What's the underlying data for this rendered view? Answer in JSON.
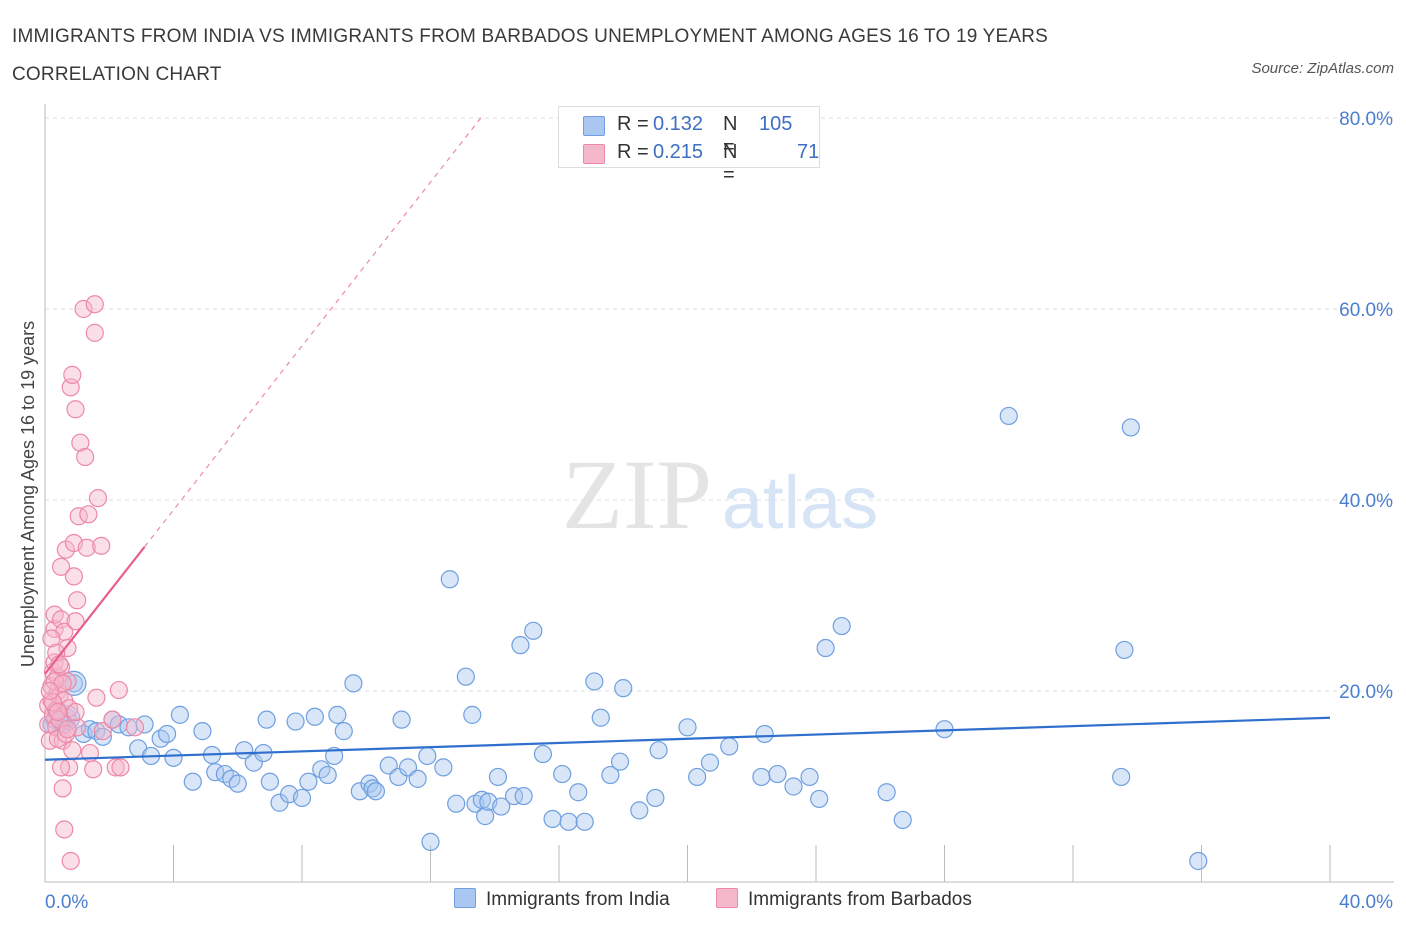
{
  "title": "IMMIGRANTS FROM INDIA VS IMMIGRANTS FROM BARBADOS UNEMPLOYMENT AMONG AGES 16 TO 19 YEARS CORRELATION CHART",
  "source": "Source: ZipAtlas.com",
  "watermark": {
    "zip": "ZIP",
    "atlas": "atlas"
  },
  "legend": {
    "india": {
      "r_label": "R =",
      "r_value": "0.132",
      "n_label": "N =",
      "n_value": "105"
    },
    "barbados": {
      "r_label": "R =",
      "r_value": "0.215",
      "n_label": "N =",
      "n_value": "71"
    }
  },
  "bottom_legend": {
    "india": "Immigrants from India",
    "barbados": "Immigrants from Barbados"
  },
  "colors": {
    "india_fill": "#a9c7f0",
    "india_stroke": "#6f9fe0",
    "india_line": "#2f6fce",
    "barbados_fill": "#f5b8cb",
    "barbados_stroke": "#ee88a8",
    "barbados_line": "#e8608a",
    "tick_text": "#4a7fcf",
    "grid": "#dddddd"
  },
  "chart_data": {
    "type": "scatter",
    "title": "IMMIGRANTS FROM INDIA VS IMMIGRANTS FROM BARBADOS UNEMPLOYMENT AMONG AGES 16 TO 19 YEARS CORRELATION CHART",
    "xlabel": "",
    "ylabel": "Unemployment Among Ages 16 to 19 years",
    "xlim": [
      0,
      40
    ],
    "ylim": [
      0,
      80
    ],
    "x_tick_labels": [
      "0.0%",
      "40.0%"
    ],
    "y_ticks": [
      20,
      40,
      60,
      80
    ],
    "y_tick_labels": [
      "20.0%",
      "40.0%",
      "60.0%",
      "80.0%"
    ],
    "grid": "horizontal dashed",
    "legend_position": "top-center",
    "series": [
      {
        "name": "Immigrants from India",
        "trend": {
          "x": [
            0,
            40
          ],
          "y": [
            12.8,
            17.2
          ]
        },
        "points": [
          [
            0.2,
            16.5
          ],
          [
            0.3,
            17
          ],
          [
            0.4,
            18
          ],
          [
            0.5,
            16.8
          ],
          [
            0.6,
            16.5
          ],
          [
            0.7,
            17.2
          ],
          [
            0.9,
            20.8
          ],
          [
            1.2,
            15.5
          ],
          [
            1.4,
            16
          ],
          [
            1.6,
            15.8
          ],
          [
            1.8,
            15.2
          ],
          [
            2.1,
            17
          ],
          [
            2.3,
            16.5
          ],
          [
            2.6,
            16.2
          ],
          [
            2.9,
            14
          ],
          [
            3.1,
            16.5
          ],
          [
            3.3,
            13.2
          ],
          [
            3.6,
            15
          ],
          [
            3.8,
            15.5
          ],
          [
            4.0,
            13
          ],
          [
            4.2,
            17.5
          ],
          [
            4.6,
            10.5
          ],
          [
            4.9,
            15.8
          ],
          [
            5.2,
            13.3
          ],
          [
            5.3,
            11.5
          ],
          [
            5.6,
            11.3
          ],
          [
            5.8,
            10.8
          ],
          [
            6.0,
            10.3
          ],
          [
            6.2,
            13.8
          ],
          [
            6.5,
            12.5
          ],
          [
            6.8,
            13.5
          ],
          [
            6.9,
            17
          ],
          [
            7.0,
            10.5
          ],
          [
            7.3,
            8.3
          ],
          [
            7.6,
            9.2
          ],
          [
            7.8,
            16.8
          ],
          [
            8.0,
            8.8
          ],
          [
            8.2,
            10.5
          ],
          [
            8.4,
            17.3
          ],
          [
            8.6,
            11.8
          ],
          [
            8.8,
            11.2
          ],
          [
            9.0,
            13.2
          ],
          [
            9.1,
            17.5
          ],
          [
            9.3,
            15.8
          ],
          [
            9.6,
            20.8
          ],
          [
            9.8,
            9.5
          ],
          [
            10.1,
            10.3
          ],
          [
            10.2,
            9.8
          ],
          [
            10.3,
            9.5
          ],
          [
            10.7,
            12.2
          ],
          [
            11.0,
            11
          ],
          [
            11.1,
            17
          ],
          [
            11.3,
            12
          ],
          [
            11.6,
            10.8
          ],
          [
            11.9,
            13.2
          ],
          [
            12.0,
            4.2
          ],
          [
            12.4,
            12
          ],
          [
            12.6,
            31.7
          ],
          [
            12.8,
            8.2
          ],
          [
            13.1,
            21.5
          ],
          [
            13.3,
            17.5
          ],
          [
            13.4,
            8.2
          ],
          [
            13.6,
            8.6
          ],
          [
            13.7,
            6.9
          ],
          [
            13.8,
            8.4
          ],
          [
            14.1,
            11
          ],
          [
            14.2,
            7.9
          ],
          [
            14.6,
            9
          ],
          [
            14.8,
            24.8
          ],
          [
            14.9,
            9
          ],
          [
            15.2,
            26.3
          ],
          [
            15.5,
            13.4
          ],
          [
            15.8,
            6.6
          ],
          [
            16.1,
            11.3
          ],
          [
            16.3,
            6.3
          ],
          [
            16.6,
            9.4
          ],
          [
            16.8,
            6.3
          ],
          [
            17.1,
            21
          ],
          [
            17.3,
            17.2
          ],
          [
            17.6,
            11.2
          ],
          [
            17.9,
            12.6
          ],
          [
            18.0,
            20.3
          ],
          [
            18.5,
            7.5
          ],
          [
            19.1,
            13.8
          ],
          [
            19.0,
            8.8
          ],
          [
            20.0,
            16.2
          ],
          [
            20.3,
            11
          ],
          [
            20.7,
            12.5
          ],
          [
            21.3,
            14.2
          ],
          [
            22.3,
            11
          ],
          [
            22.4,
            15.5
          ],
          [
            22.8,
            11.3
          ],
          [
            23.3,
            10
          ],
          [
            23.8,
            11
          ],
          [
            24.1,
            8.7
          ],
          [
            24.3,
            24.5
          ],
          [
            24.8,
            26.8
          ],
          [
            26.2,
            9.4
          ],
          [
            26.7,
            6.5
          ],
          [
            28.0,
            16
          ],
          [
            30.0,
            48.8
          ],
          [
            33.5,
            11
          ],
          [
            33.6,
            24.3
          ],
          [
            33.8,
            47.6
          ],
          [
            35.9,
            2.2
          ]
        ]
      },
      {
        "name": "Immigrants from Barbados",
        "trend": {
          "x": [
            0,
            3.1
          ],
          "y": [
            21.8,
            35.1
          ]
        },
        "points": [
          [
            0.1,
            18.5
          ],
          [
            0.1,
            16.5
          ],
          [
            0.15,
            14.8
          ],
          [
            0.2,
            19
          ],
          [
            0.2,
            20.5
          ],
          [
            0.25,
            22
          ],
          [
            0.25,
            17.5
          ],
          [
            0.3,
            23
          ],
          [
            0.3,
            26.5
          ],
          [
            0.3,
            28
          ],
          [
            0.35,
            16.2
          ],
          [
            0.35,
            18
          ],
          [
            0.4,
            20
          ],
          [
            0.4,
            21.5
          ],
          [
            0.45,
            17
          ],
          [
            0.45,
            19.5
          ],
          [
            0.5,
            22.5
          ],
          [
            0.5,
            27.5
          ],
          [
            0.5,
            33
          ],
          [
            0.55,
            14.8
          ],
          [
            0.55,
            9.8
          ],
          [
            0.6,
            5.5
          ],
          [
            0.6,
            19
          ],
          [
            0.6,
            26.2
          ],
          [
            0.65,
            34.8
          ],
          [
            0.7,
            21
          ],
          [
            0.7,
            24.5
          ],
          [
            0.75,
            12
          ],
          [
            0.75,
            18.2
          ],
          [
            0.8,
            2.2
          ],
          [
            0.8,
            51.8
          ],
          [
            0.85,
            53.1
          ],
          [
            0.9,
            35.5
          ],
          [
            0.9,
            32
          ],
          [
            0.95,
            49.5
          ],
          [
            0.95,
            27.3
          ],
          [
            1.0,
            29.5
          ],
          [
            1.0,
            16.2
          ],
          [
            1.05,
            38.3
          ],
          [
            1.1,
            46
          ],
          [
            1.2,
            60
          ],
          [
            1.25,
            44.5
          ],
          [
            1.3,
            35
          ],
          [
            1.35,
            38.5
          ],
          [
            1.4,
            13.5
          ],
          [
            1.5,
            11.8
          ],
          [
            1.55,
            60.5
          ],
          [
            1.55,
            57.5
          ],
          [
            1.6,
            19.3
          ],
          [
            1.65,
            40.2
          ],
          [
            1.75,
            35.2
          ],
          [
            1.8,
            15.8
          ],
          [
            2.1,
            17
          ],
          [
            2.2,
            12
          ],
          [
            2.3,
            20.1
          ],
          [
            2.35,
            12
          ],
          [
            2.8,
            16.2
          ],
          [
            0.2,
            25.5
          ],
          [
            0.3,
            21
          ],
          [
            0.4,
            15
          ],
          [
            0.5,
            12
          ],
          [
            0.35,
            24
          ],
          [
            0.45,
            22.8
          ],
          [
            0.25,
            18.8
          ],
          [
            0.65,
            15.5
          ],
          [
            0.55,
            20.8
          ],
          [
            0.15,
            20
          ],
          [
            0.85,
            13.8
          ],
          [
            0.95,
            17.8
          ],
          [
            0.7,
            16
          ],
          [
            0.4,
            17.8
          ]
        ]
      }
    ]
  }
}
